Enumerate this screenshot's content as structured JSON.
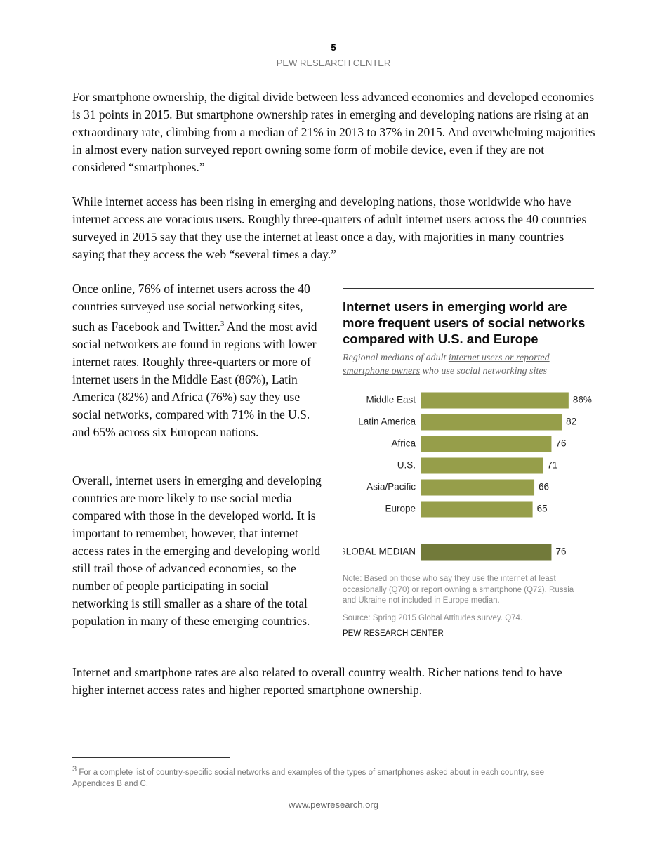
{
  "header": {
    "page_number": "5",
    "organization": "PEW RESEARCH CENTER"
  },
  "paragraphs": [
    "For smartphone ownership, the digital divide between less advanced economies and developed economies is 31 points in 2015. But smartphone ownership rates in emerging and developing nations are rising at an extraordinary rate, climbing from a median of 21% in 2013 to 37% in 2015. And overwhelming majorities in almost every nation surveyed report owning some form of mobile device, even if they are not considered “smartphones.”",
    "While internet access has been rising in emerging and developing nations, those worldwide who have internet access are voracious users. Roughly three-quarters of adult internet users across the 40 countries surveyed in 2015 say that they use the internet at least once a day, with majorities in many countries saying that they access the web “several times a day.”"
  ],
  "left_column": {
    "first": {
      "before": "Once online, 76% of internet users across the 40 countries surveyed use social networking sites, such as Facebook and Twitter.",
      "footnote_ref": "3",
      "after": " And the most avid social networkers are found in regions with lower internet rates. Roughly three-quarters or more of internet users in the Middle East (86%), Latin America (82%) and Africa (76%) say they use social networks, compared with 71% in the U.S. and 65% across six European nations."
    },
    "second": "Overall, internet users in emerging and developing countries are more likely to use social media compared with those in the developed world. It is important to remember, however, that internet access rates in the emerging and developing world still trail those of advanced economies, so the number of people participating in social networking is still smaller as a share of the total population in many of these emerging countries."
  },
  "chart_data": {
    "type": "bar",
    "title": "Internet users in emerging world are more frequent users of social networks compared with U.S. and Europe",
    "subtitle": [
      "Regional medians of adult ",
      "internet users or reported smartphone owners",
      " who use social networking sites"
    ],
    "categories": [
      "Middle East",
      "Latin America",
      "Africa",
      "U.S.",
      "Asia/Pacific",
      "Europe",
      "GLOBAL MEDIAN"
    ],
    "values": [
      86,
      82,
      76,
      71,
      66,
      65,
      76
    ],
    "value_labels": [
      "86%",
      "82",
      "76",
      "71",
      "66",
      "65",
      "76"
    ],
    "colors": [
      "#969e4a",
      "#969e4a",
      "#969e4a",
      "#969e4a",
      "#969e4a",
      "#969e4a",
      "#727a3a"
    ],
    "note": "Note: Based on those who say they use the internet at least occasionally (Q70) or report owning a smartphone (Q72). Russia and Ukraine not included in Europe median.",
    "source": "Source: Spring 2015 Global Attitudes survey. Q74.",
    "credit": "PEW RESEARCH CENTER"
  },
  "closing_paragraph": "Internet and smartphone rates are also related to overall country wealth. Richer nations tend to have higher internet access rates and higher reported smartphone ownership.",
  "footnote": {
    "ref": "3",
    "text": " For a complete list of country-specific social networks and examples of the types of smartphones asked about in each country, see Appendices B and C."
  },
  "footer": "www.pewresearch.org"
}
